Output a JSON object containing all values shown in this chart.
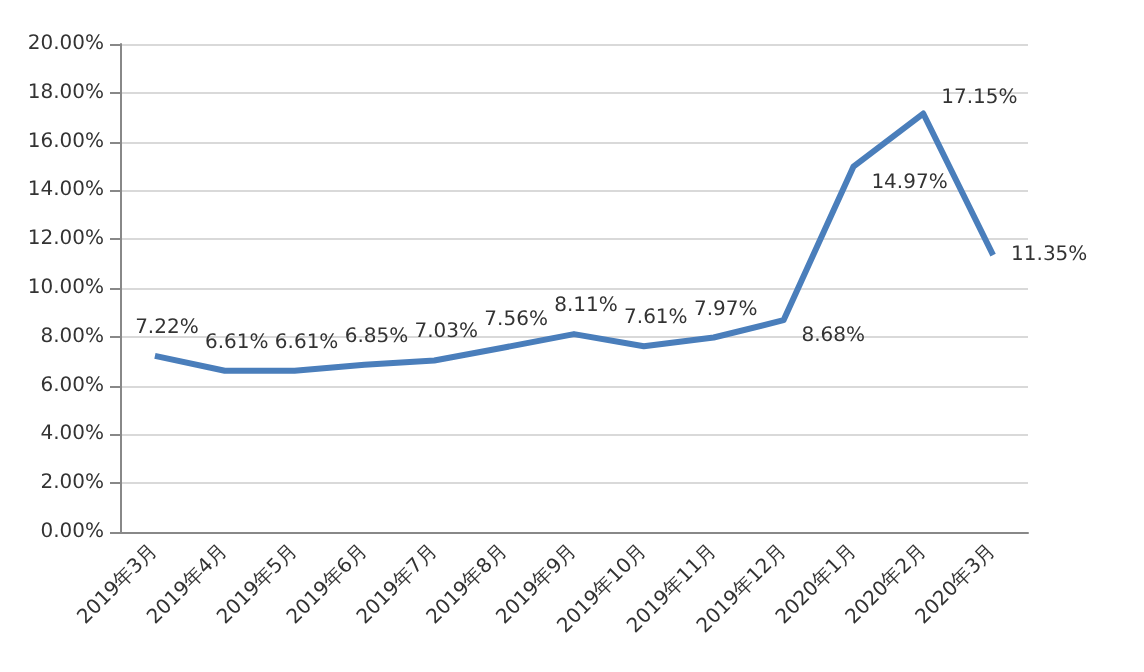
{
  "chart_data": {
    "type": "line",
    "categories": [
      "2019年3月",
      "2019年4月",
      "2019年5月",
      "2019年6月",
      "2019年7月",
      "2019年8月",
      "2019年9月",
      "2019年10月",
      "2019年11月",
      "2019年12月",
      "2020年1月",
      "2020年2月",
      "2020年3月"
    ],
    "series": [
      {
        "color": "#4a7ebb",
        "values": [
          7.22,
          6.61,
          6.61,
          6.85,
          7.03,
          7.56,
          8.11,
          7.61,
          7.97,
          8.68,
          14.97,
          17.15,
          11.35
        ],
        "value_labels": [
          "7.22%",
          "6.61%",
          "6.61%",
          "6.85%",
          "7.03%",
          "7.56%",
          "8.11%",
          "7.61%",
          "7.97%",
          "8.68%",
          "14.97%",
          "17.15%",
          "11.35%"
        ]
      }
    ],
    "ylim": [
      0,
      20
    ],
    "yticks": [
      {
        "value": 0,
        "label": "0.00%"
      },
      {
        "value": 2,
        "label": "2.00%"
      },
      {
        "value": 4,
        "label": "4.00%"
      },
      {
        "value": 6,
        "label": "6.00%"
      },
      {
        "value": 8,
        "label": "8.00%"
      },
      {
        "value": 10,
        "label": "10.00%"
      },
      {
        "value": 12,
        "label": "12.00%"
      },
      {
        "value": 14,
        "label": "14.00%"
      },
      {
        "value": 16,
        "label": "16.00%"
      },
      {
        "value": 18,
        "label": "18.00%"
      },
      {
        "value": 20,
        "label": "20.00%"
      }
    ],
    "grid": "y",
    "marker": "none",
    "line_style": "solid"
  }
}
